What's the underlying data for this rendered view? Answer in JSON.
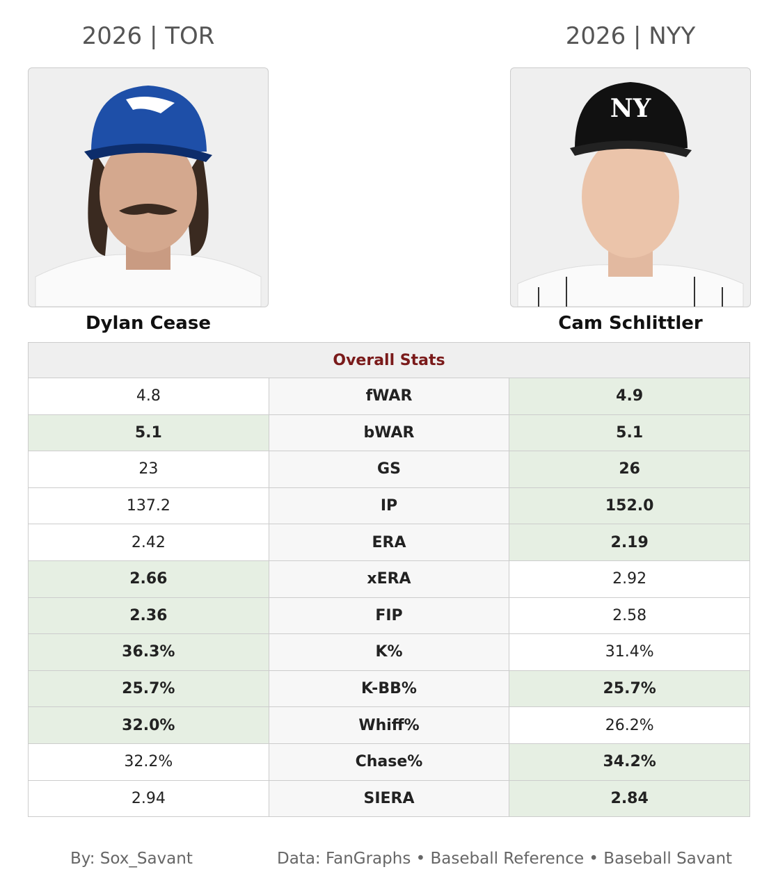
{
  "players": [
    {
      "header": "2026 | TOR",
      "name": "Dylan Cease"
    },
    {
      "header": "2026 | NYY",
      "name": "Cam Schlittler"
    }
  ],
  "table": {
    "title": "Overall Stats",
    "rows": [
      {
        "left": "4.8",
        "stat": "fWAR",
        "right": "4.9",
        "best": [
          "right"
        ]
      },
      {
        "left": "5.1",
        "stat": "bWAR",
        "right": "5.1",
        "best": [
          "left",
          "right"
        ]
      },
      {
        "left": "23",
        "stat": "GS",
        "right": "26",
        "best": [
          "right"
        ]
      },
      {
        "left": "137.2",
        "stat": "IP",
        "right": "152.0",
        "best": [
          "right"
        ]
      },
      {
        "left": "2.42",
        "stat": "ERA",
        "right": "2.19",
        "best": [
          "right"
        ]
      },
      {
        "left": "2.66",
        "stat": "xERA",
        "right": "2.92",
        "best": [
          "left"
        ]
      },
      {
        "left": "2.36",
        "stat": "FIP",
        "right": "2.58",
        "best": [
          "left"
        ]
      },
      {
        "left": "36.3%",
        "stat": "K%",
        "right": "31.4%",
        "best": [
          "left"
        ]
      },
      {
        "left": "25.7%",
        "stat": "K-BB%",
        "right": "25.7%",
        "best": [
          "left",
          "right"
        ]
      },
      {
        "left": "32.0%",
        "stat": "Whiff%",
        "right": "26.2%",
        "best": [
          "left"
        ]
      },
      {
        "left": "32.2%",
        "stat": "Chase%",
        "right": "34.2%",
        "best": [
          "right"
        ]
      },
      {
        "left": "2.94",
        "stat": "SIERA",
        "right": "2.84",
        "best": [
          "right"
        ]
      }
    ]
  },
  "footer": {
    "credit": "By: Sox_Savant",
    "sources": "Data: FanGraphs • Baseball Reference • Baseball Savant"
  }
}
